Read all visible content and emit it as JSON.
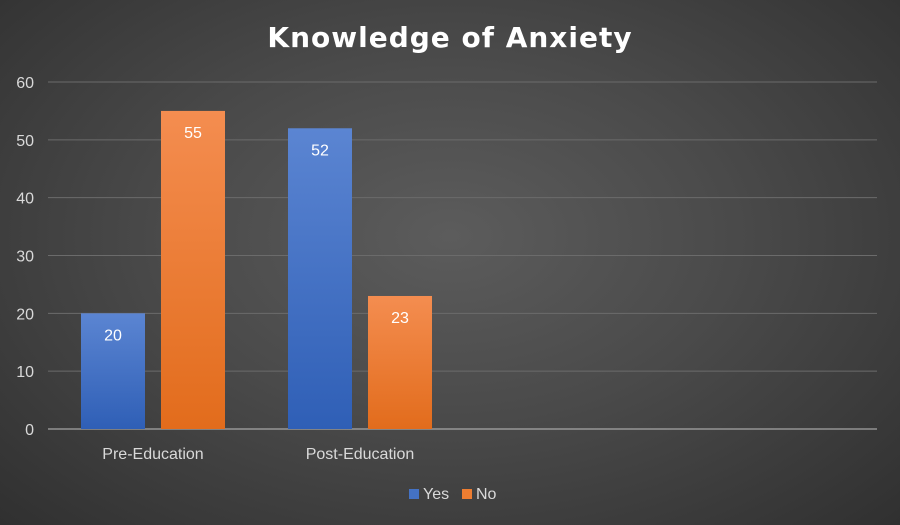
{
  "chart_data": {
    "type": "bar",
    "title": "Knowledge of Anxiety",
    "xlabel": "",
    "ylabel": "",
    "categories": [
      "Pre-Education",
      "Post-Education"
    ],
    "series": [
      {
        "name": "Yes",
        "values": [
          20,
          52
        ],
        "color": "#4472C4"
      },
      {
        "name": "No",
        "values": [
          55,
          23
        ],
        "color": "#ED7D31"
      }
    ],
    "ylim": [
      0,
      60
    ],
    "yticks": [
      0,
      10,
      20,
      30,
      40,
      50,
      60
    ],
    "grid": true,
    "legend": "bottom",
    "data_labels": true
  }
}
